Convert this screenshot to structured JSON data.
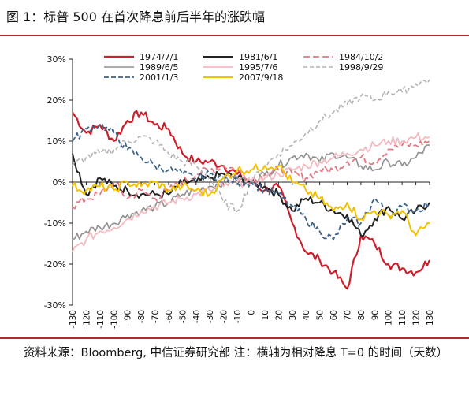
{
  "figure": {
    "title": "图 1：标普 500 在首次降息前后半年的涨跌幅",
    "source": "资料来源：Bloomberg, 中信证券研究部    注：横轴为相对降息 T=0 的时间（天数）"
  },
  "colors": {
    "rule": "#b3262e"
  },
  "chart_data": {
    "type": "line",
    "title": "",
    "xlabel": "",
    "ylabel": "",
    "xlim": [
      -130,
      130
    ],
    "ylim": [
      -0.3,
      0.3
    ],
    "y_ticks": [
      0.3,
      0.2,
      0.1,
      0.0,
      -0.1,
      -0.2,
      -0.3
    ],
    "y_tick_labels": [
      "30%",
      "20%",
      "10%",
      "0%",
      "-10%",
      "-20%",
      "-30%"
    ],
    "x_ticks": [
      -130,
      -120,
      -110,
      -100,
      -90,
      -80,
      -70,
      -60,
      -50,
      -40,
      -30,
      -20,
      -10,
      0,
      10,
      20,
      30,
      40,
      50,
      60,
      70,
      80,
      90,
      100,
      110,
      120,
      130
    ],
    "x_tick_labels": [
      "-130",
      "-120",
      "-110",
      "-100",
      "-90",
      "-80",
      "-70",
      "-60",
      "-50",
      "-40",
      "-30",
      "-20",
      "-10",
      "0",
      "10",
      "20",
      "30",
      "40",
      "50",
      "60",
      "70",
      "80",
      "90",
      "100",
      "110",
      "120",
      "130"
    ],
    "grid": false,
    "legend_position": "top",
    "series": [
      {
        "name": "1974/7/1",
        "color": "#cc1f2c",
        "dash": "solid",
        "width": 2.2,
        "x": [
          -130,
          -120,
          -110,
          -100,
          -90,
          -80,
          -70,
          -60,
          -50,
          -40,
          -30,
          -20,
          -10,
          0,
          10,
          20,
          30,
          40,
          50,
          60,
          70,
          80,
          90,
          100,
          110,
          120,
          130
        ],
        "y": [
          0.17,
          0.12,
          0.14,
          0.1,
          0.15,
          0.17,
          0.14,
          0.13,
          0.07,
          0.05,
          0.05,
          0.04,
          0.02,
          0.0,
          -0.02,
          -0.01,
          -0.1,
          -0.17,
          -0.19,
          -0.22,
          -0.26,
          -0.13,
          -0.15,
          -0.2,
          -0.21,
          -0.22,
          -0.19
        ]
      },
      {
        "name": "1981/6/1",
        "color": "#222222",
        "dash": "solid",
        "width": 2.0,
        "x": [
          -130,
          -120,
          -110,
          -100,
          -90,
          -80,
          -70,
          -60,
          -50,
          -40,
          -30,
          -20,
          -10,
          0,
          10,
          20,
          30,
          40,
          50,
          60,
          70,
          80,
          90,
          100,
          110,
          120,
          130
        ],
        "y": [
          0.07,
          -0.03,
          0.01,
          -0.01,
          -0.02,
          -0.03,
          -0.03,
          -0.03,
          0.0,
          0.0,
          0.01,
          0.02,
          0.01,
          0.0,
          -0.01,
          -0.03,
          -0.07,
          -0.04,
          -0.05,
          -0.07,
          -0.08,
          -0.13,
          -0.09,
          -0.06,
          -0.09,
          -0.07,
          -0.05
        ]
      },
      {
        "name": "1984/10/2",
        "color": "#e27a86",
        "dash": "8,4",
        "width": 1.8,
        "x": [
          -130,
          -120,
          -110,
          -100,
          -90,
          -80,
          -70,
          -60,
          -50,
          -40,
          -30,
          -20,
          -10,
          0,
          10,
          20,
          30,
          40,
          50,
          60,
          70,
          80,
          90,
          100,
          110,
          120,
          130
        ],
        "y": [
          -0.06,
          -0.04,
          -0.03,
          0.0,
          -0.04,
          -0.02,
          -0.04,
          -0.02,
          0.0,
          0.02,
          0.03,
          0.04,
          0.03,
          0.0,
          0.02,
          0.03,
          0.02,
          0.01,
          0.03,
          0.03,
          0.05,
          0.06,
          0.05,
          0.08,
          0.09,
          0.09,
          0.1
        ]
      },
      {
        "name": "1989/6/5",
        "color": "#909090",
        "dash": "solid",
        "width": 1.6,
        "x": [
          -130,
          -120,
          -110,
          -100,
          -90,
          -80,
          -70,
          -60,
          -50,
          -40,
          -30,
          -20,
          -10,
          0,
          10,
          20,
          30,
          40,
          50,
          60,
          70,
          80,
          90,
          100,
          110,
          120,
          130
        ],
        "y": [
          -0.14,
          -0.12,
          -0.11,
          -0.1,
          -0.08,
          -0.07,
          -0.06,
          -0.05,
          -0.03,
          -0.02,
          -0.01,
          0.0,
          0.01,
          0.0,
          0.02,
          0.04,
          0.06,
          0.07,
          0.05,
          0.07,
          0.06,
          0.04,
          0.03,
          0.05,
          0.04,
          0.06,
          0.09
        ]
      },
      {
        "name": "1995/7/6",
        "color": "#f2b9c0",
        "dash": "solid",
        "width": 1.8,
        "x": [
          -130,
          -120,
          -110,
          -100,
          -90,
          -80,
          -70,
          -60,
          -50,
          -40,
          -30,
          -20,
          -10,
          0,
          10,
          20,
          30,
          40,
          50,
          60,
          70,
          80,
          90,
          100,
          110,
          120,
          130
        ],
        "y": [
          -0.17,
          -0.14,
          -0.12,
          -0.11,
          -0.09,
          -0.07,
          -0.06,
          -0.05,
          -0.04,
          -0.03,
          -0.02,
          -0.01,
          0.0,
          0.0,
          0.01,
          0.02,
          0.03,
          0.04,
          0.05,
          0.06,
          0.07,
          0.08,
          0.09,
          0.1,
          0.1,
          0.11,
          0.11
        ]
      },
      {
        "name": "1998/9/29",
        "color": "#b3b3b3",
        "dash": "5,3",
        "width": 1.6,
        "x": [
          -130,
          -120,
          -110,
          -100,
          -90,
          -80,
          -70,
          -60,
          -50,
          -40,
          -30,
          -20,
          -10,
          0,
          10,
          20,
          30,
          40,
          50,
          60,
          70,
          80,
          90,
          100,
          110,
          120,
          130
        ],
        "y": [
          0.04,
          0.06,
          0.07,
          0.08,
          0.1,
          0.11,
          0.1,
          0.07,
          0.05,
          0.04,
          0.01,
          -0.05,
          -0.07,
          0.0,
          0.04,
          0.07,
          0.09,
          0.12,
          0.15,
          0.17,
          0.19,
          0.21,
          0.2,
          0.22,
          0.22,
          0.24,
          0.25
        ]
      },
      {
        "name": "2001/1/3",
        "color": "#3f6387",
        "dash": "6,3",
        "width": 1.8,
        "x": [
          -130,
          -120,
          -110,
          -100,
          -90,
          -80,
          -70,
          -60,
          -50,
          -40,
          -30,
          -20,
          -10,
          0,
          10,
          20,
          30,
          40,
          50,
          60,
          70,
          80,
          90,
          100,
          110,
          120,
          130
        ],
        "y": [
          0.1,
          0.13,
          0.14,
          0.12,
          0.08,
          0.06,
          0.04,
          0.03,
          0.02,
          0.01,
          0.02,
          0.01,
          0.0,
          0.0,
          -0.02,
          -0.03,
          -0.06,
          -0.09,
          -0.12,
          -0.14,
          -0.09,
          -0.1,
          -0.04,
          -0.08,
          -0.06,
          -0.07,
          -0.05
        ]
      },
      {
        "name": "2007/9/18",
        "color": "#f2c200",
        "dash": "solid",
        "width": 2.0,
        "x": [
          -130,
          -120,
          -110,
          -100,
          -90,
          -80,
          -70,
          -60,
          -50,
          -40,
          -30,
          -20,
          -10,
          0,
          10,
          20,
          30,
          40,
          50,
          60,
          70,
          80,
          90,
          100,
          110,
          120,
          130
        ],
        "y": [
          -0.01,
          -0.02,
          -0.01,
          -0.02,
          0.0,
          -0.01,
          0.0,
          -0.02,
          -0.01,
          -0.02,
          -0.03,
          0.01,
          0.03,
          0.03,
          0.04,
          0.04,
          0.0,
          -0.02,
          -0.04,
          -0.07,
          -0.05,
          -0.09,
          -0.07,
          -0.08,
          -0.07,
          -0.13,
          -0.1
        ]
      }
    ]
  }
}
